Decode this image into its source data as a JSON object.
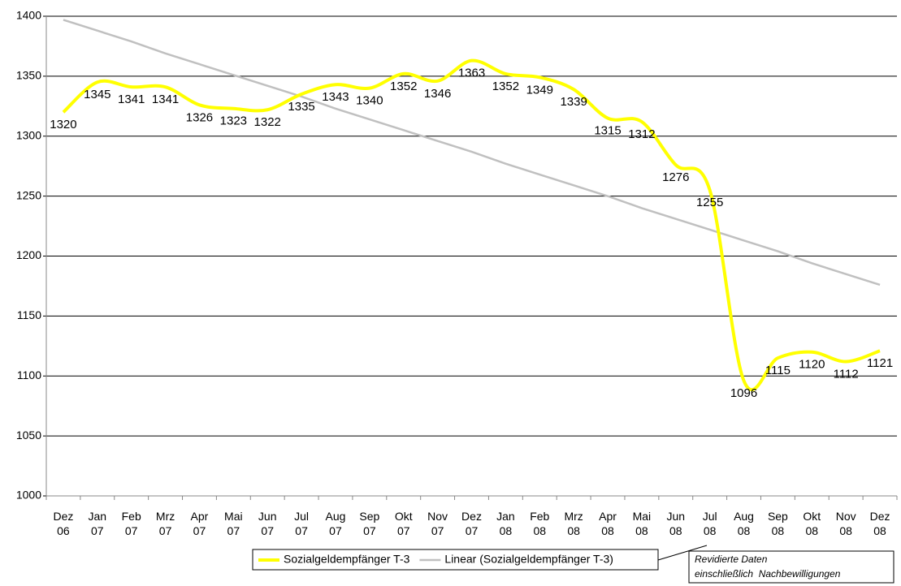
{
  "chart_data": {
    "type": "line",
    "categories": [
      "Dez 06",
      "Jan 07",
      "Feb 07",
      "Mrz 07",
      "Apr 07",
      "Mai 07",
      "Jun 07",
      "Jul 07",
      "Aug 07",
      "Sep 07",
      "Okt 07",
      "Nov 07",
      "Dez 07",
      "Jan 08",
      "Feb 08",
      "Mrz 08",
      "Apr 08",
      "Mai 08",
      "Jun 08",
      "Jul 08",
      "Aug 08",
      "Sep 08",
      "Okt 08",
      "Nov 08",
      "Dez 08"
    ],
    "series": [
      {
        "name": "Sozialgeldempfänger T-3",
        "color": "#ffff00",
        "smooth": true,
        "labels": true,
        "values": [
          1320,
          1345,
          1341,
          1341,
          1326,
          1323,
          1322,
          1335,
          1343,
          1340,
          1352,
          1346,
          1363,
          1352,
          1349,
          1339,
          1315,
          1312,
          1276,
          1255,
          1096,
          1115,
          1120,
          1112,
          1121
        ]
      },
      {
        "name": "Linear (Sozialgeldempfänger T-3)",
        "color": "#c0c0c0",
        "smooth": false,
        "labels": false,
        "values": [
          1397,
          1388,
          1379,
          1369,
          1360,
          1351,
          1342,
          1333,
          1323,
          1314,
          1305,
          1296,
          1287,
          1277,
          1268,
          1259,
          1250,
          1240,
          1231,
          1222,
          1213,
          1204,
          1194,
          1185,
          1176
        ]
      }
    ],
    "ylim": [
      1000,
      1400
    ],
    "yticks": [
      1000,
      1050,
      1100,
      1150,
      1200,
      1250,
      1300,
      1350,
      1400
    ],
    "grid": true,
    "note": [
      "Revidierte Daten",
      "einschließlich  Nachbewilligungen"
    ]
  }
}
